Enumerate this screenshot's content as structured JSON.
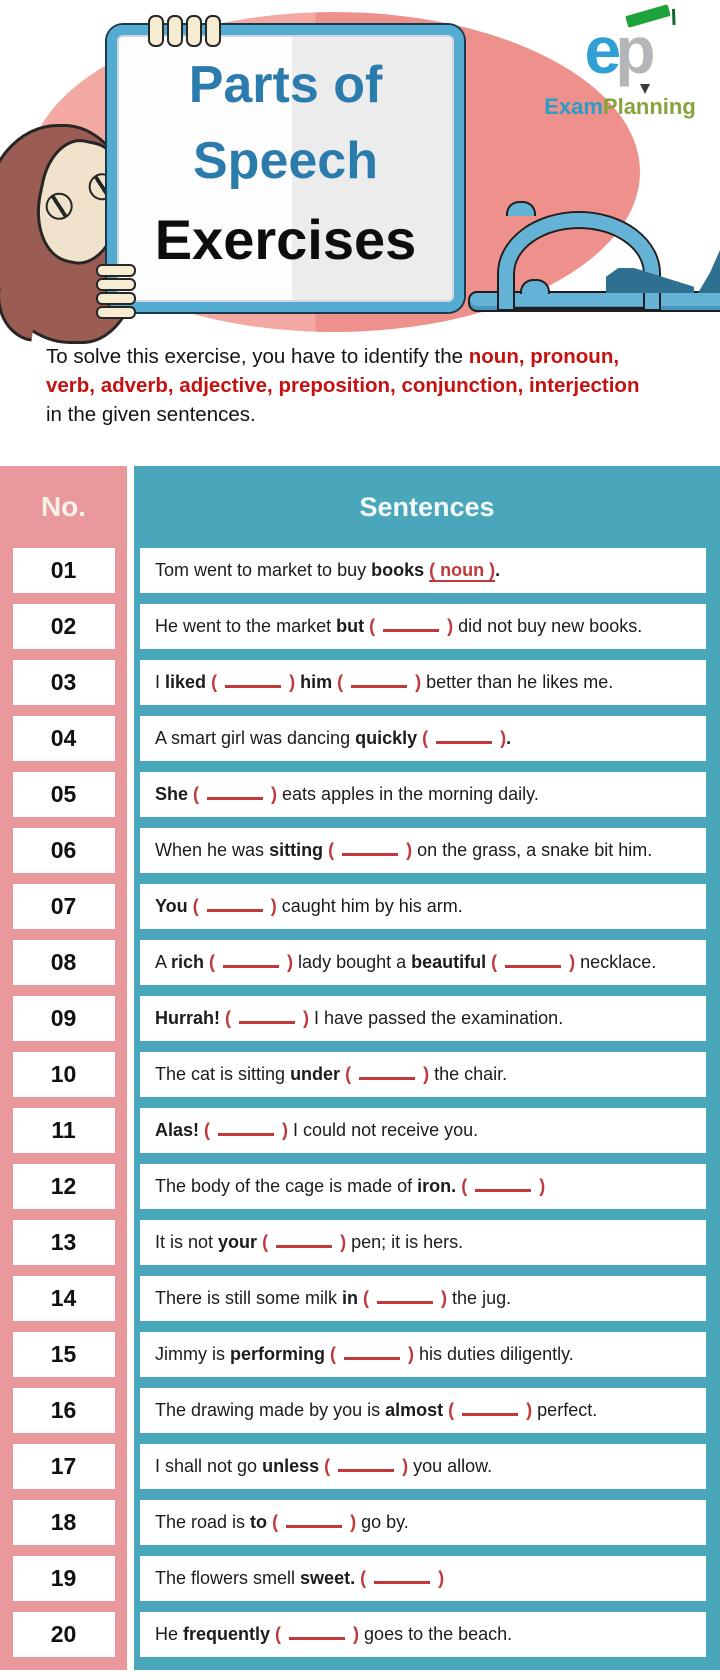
{
  "hero": {
    "title_line1": "Parts of",
    "title_line2": "Speech",
    "title_line3": "Exercises",
    "logo": {
      "letter_e": "e",
      "letter_p": "p",
      "brand_exam": "Exam",
      "brand_planning": "Planning"
    }
  },
  "intro": {
    "line1_black": "To solve this exercise, you have to identify the ",
    "line1_red": "noun, pronoun,",
    "line2_red": "verb, adverb, adjective, preposition, conjunction, interjection",
    "line3_black": "in the given sentences."
  },
  "table": {
    "col_no_header": "No.",
    "col_sentences_header": "Sentences",
    "rows": [
      {
        "no": "01",
        "segments": [
          {
            "t": "Tom went to market to buy ",
            "s": "n"
          },
          {
            "t": "books",
            "s": "b"
          },
          {
            "t": " ",
            "s": "n"
          },
          {
            "t": "( noun )",
            "s": "ru"
          },
          {
            "t": ".",
            "s": "b"
          }
        ]
      },
      {
        "no": "02",
        "segments": [
          {
            "t": "He went to the market ",
            "s": "n"
          },
          {
            "t": "but",
            "s": "b"
          },
          {
            "t": " ",
            "s": "n"
          },
          {
            "t": "( ",
            "s": "r"
          },
          {
            "s": "blank"
          },
          {
            "t": " )",
            "s": "r"
          },
          {
            "t": " did not buy new books.",
            "s": "n"
          }
        ]
      },
      {
        "no": "03",
        "segments": [
          {
            "t": "I ",
            "s": "n"
          },
          {
            "t": "liked",
            "s": "b"
          },
          {
            "t": " ",
            "s": "n"
          },
          {
            "t": "( ",
            "s": "r"
          },
          {
            "s": "blank"
          },
          {
            "t": " )",
            "s": "r"
          },
          {
            "t": " ",
            "s": "n"
          },
          {
            "t": "him",
            "s": "b"
          },
          {
            "t": " ",
            "s": "n"
          },
          {
            "t": "( ",
            "s": "r"
          },
          {
            "s": "blank"
          },
          {
            "t": " )",
            "s": "r"
          },
          {
            "t": " better than he likes me.",
            "s": "n"
          }
        ]
      },
      {
        "no": "04",
        "segments": [
          {
            "t": "A smart girl was dancing ",
            "s": "n"
          },
          {
            "t": "quickly",
            "s": "b"
          },
          {
            "t": " ",
            "s": "n"
          },
          {
            "t": "( ",
            "s": "r"
          },
          {
            "s": "blank"
          },
          {
            "t": " )",
            "s": "r"
          },
          {
            "t": ".",
            "s": "b"
          }
        ]
      },
      {
        "no": "05",
        "segments": [
          {
            "t": "She",
            "s": "b"
          },
          {
            "t": " ",
            "s": "n"
          },
          {
            "t": "( ",
            "s": "r"
          },
          {
            "s": "blank"
          },
          {
            "t": " )",
            "s": "r"
          },
          {
            "t": " eats apples in the morning daily.",
            "s": "n"
          }
        ]
      },
      {
        "no": "06",
        "segments": [
          {
            "t": "When he was ",
            "s": "n"
          },
          {
            "t": "sitting",
            "s": "b"
          },
          {
            "t": " ",
            "s": "n"
          },
          {
            "t": "( ",
            "s": "r"
          },
          {
            "s": "blank"
          },
          {
            "t": " )",
            "s": "r"
          },
          {
            "t": " on the grass, a snake bit him.",
            "s": "n"
          }
        ]
      },
      {
        "no": "07",
        "segments": [
          {
            "t": "You",
            "s": "b"
          },
          {
            "t": " ",
            "s": "n"
          },
          {
            "t": "( ",
            "s": "r"
          },
          {
            "s": "blank"
          },
          {
            "t": " )",
            "s": "r"
          },
          {
            "t": " caught him by his arm.",
            "s": "n"
          }
        ]
      },
      {
        "no": "08",
        "segments": [
          {
            "t": "A ",
            "s": "n"
          },
          {
            "t": "rich",
            "s": "b"
          },
          {
            "t": " ",
            "s": "n"
          },
          {
            "t": "( ",
            "s": "r"
          },
          {
            "s": "blank"
          },
          {
            "t": " )",
            "s": "r"
          },
          {
            "t": " lady bought a ",
            "s": "n"
          },
          {
            "t": "beautiful",
            "s": "b"
          },
          {
            "t": " ",
            "s": "n"
          },
          {
            "t": "( ",
            "s": "r"
          },
          {
            "s": "blank"
          },
          {
            "t": " )",
            "s": "r"
          },
          {
            "t": " necklace.",
            "s": "n"
          }
        ]
      },
      {
        "no": "09",
        "segments": [
          {
            "t": "Hurrah!",
            "s": "b"
          },
          {
            "t": " ",
            "s": "n"
          },
          {
            "t": "( ",
            "s": "r"
          },
          {
            "s": "blank"
          },
          {
            "t": " )",
            "s": "r"
          },
          {
            "t": " I have passed the examination.",
            "s": "n"
          }
        ]
      },
      {
        "no": "10",
        "segments": [
          {
            "t": "The cat is sitting ",
            "s": "n"
          },
          {
            "t": "under",
            "s": "b"
          },
          {
            "t": " ",
            "s": "n"
          },
          {
            "t": "( ",
            "s": "r"
          },
          {
            "s": "blank"
          },
          {
            "t": " )",
            "s": "r"
          },
          {
            "t": " the chair.",
            "s": "n"
          }
        ]
      },
      {
        "no": "11",
        "segments": [
          {
            "t": "Alas!",
            "s": "b"
          },
          {
            "t": " ",
            "s": "n"
          },
          {
            "t": "( ",
            "s": "r"
          },
          {
            "s": "blank"
          },
          {
            "t": " )",
            "s": "r"
          },
          {
            "t": " I could not receive you.",
            "s": "n"
          }
        ]
      },
      {
        "no": "12",
        "segments": [
          {
            "t": "The body of the cage is made of ",
            "s": "n"
          },
          {
            "t": "iron.",
            "s": "b"
          },
          {
            "t": " ",
            "s": "n"
          },
          {
            "t": "( ",
            "s": "r"
          },
          {
            "s": "blank"
          },
          {
            "t": " )",
            "s": "r"
          }
        ]
      },
      {
        "no": "13",
        "segments": [
          {
            "t": "It is not ",
            "s": "n"
          },
          {
            "t": "your",
            "s": "b"
          },
          {
            "t": " ",
            "s": "n"
          },
          {
            "t": "( ",
            "s": "r"
          },
          {
            "s": "blank"
          },
          {
            "t": " )",
            "s": "r"
          },
          {
            "t": " pen; it is hers.",
            "s": "n"
          }
        ]
      },
      {
        "no": "14",
        "segments": [
          {
            "t": "There is still some milk ",
            "s": "n"
          },
          {
            "t": "in",
            "s": "b"
          },
          {
            "t": " ",
            "s": "n"
          },
          {
            "t": "( ",
            "s": "r"
          },
          {
            "s": "blank"
          },
          {
            "t": " )",
            "s": "r"
          },
          {
            "t": " the jug.",
            "s": "n"
          }
        ]
      },
      {
        "no": "15",
        "segments": [
          {
            "t": "Jimmy is ",
            "s": "n"
          },
          {
            "t": "performing",
            "s": "b"
          },
          {
            "t": " ",
            "s": "n"
          },
          {
            "t": "( ",
            "s": "r"
          },
          {
            "s": "blank"
          },
          {
            "t": " )",
            "s": "r"
          },
          {
            "t": " his duties diligently.",
            "s": "n"
          }
        ]
      },
      {
        "no": "16",
        "segments": [
          {
            "t": "The drawing made by you is ",
            "s": "n"
          },
          {
            "t": "almost",
            "s": "b"
          },
          {
            "t": " ",
            "s": "n"
          },
          {
            "t": "( ",
            "s": "r"
          },
          {
            "s": "blank"
          },
          {
            "t": " )",
            "s": "r"
          },
          {
            "t": " perfect.",
            "s": "n"
          }
        ]
      },
      {
        "no": "17",
        "segments": [
          {
            "t": "I shall not go ",
            "s": "n"
          },
          {
            "t": "unless",
            "s": "b"
          },
          {
            "t": " ",
            "s": "n"
          },
          {
            "t": "( ",
            "s": "r"
          },
          {
            "s": "blank"
          },
          {
            "t": " )",
            "s": "r"
          },
          {
            "t": " you allow.",
            "s": "n"
          }
        ]
      },
      {
        "no": "18",
        "segments": [
          {
            "t": "The road is ",
            "s": "n"
          },
          {
            "t": "to",
            "s": "b"
          },
          {
            "t": " ",
            "s": "n"
          },
          {
            "t": "( ",
            "s": "r"
          },
          {
            "s": "blank"
          },
          {
            "t": " )",
            "s": "r"
          },
          {
            "t": " go by.",
            "s": "n"
          }
        ]
      },
      {
        "no": "19",
        "segments": [
          {
            "t": "The flowers smell ",
            "s": "n"
          },
          {
            "t": "sweet.",
            "s": "b"
          },
          {
            "t": " ",
            "s": "n"
          },
          {
            "t": "( ",
            "s": "r"
          },
          {
            "s": "blank"
          },
          {
            "t": " )",
            "s": "r"
          }
        ]
      },
      {
        "no": "20",
        "segments": [
          {
            "t": "He ",
            "s": "n"
          },
          {
            "t": "frequently",
            "s": "b"
          },
          {
            "t": " ",
            "s": "n"
          },
          {
            "t": "( ",
            "s": "r"
          },
          {
            "s": "blank"
          },
          {
            "t": " )",
            "s": "r"
          },
          {
            "t": " goes to the beach.",
            "s": "n"
          }
        ]
      }
    ]
  },
  "colors": {
    "pink_column": "#e9999b",
    "teal_column": "#4aa6bb",
    "sentence_red": "#bf393c",
    "intro_red": "#c61111",
    "title_blue": "#2b7cad",
    "ellipse_pink": "#ee918c",
    "logo_blue": "#2f9fd4",
    "logo_green": "#87a33c"
  }
}
